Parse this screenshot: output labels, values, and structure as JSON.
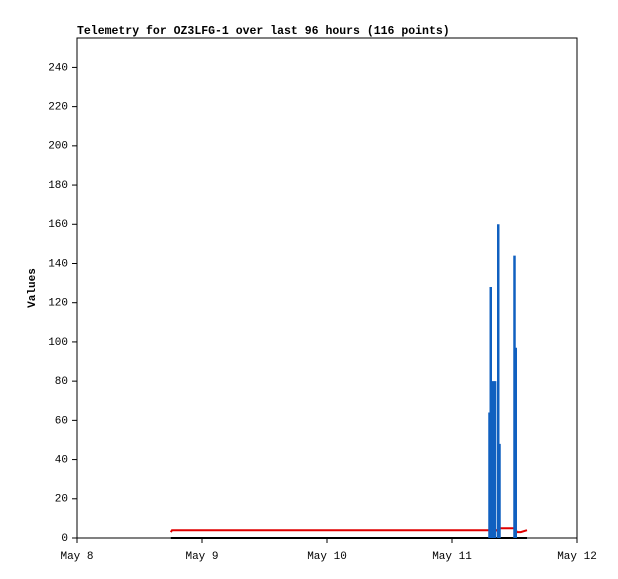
{
  "chart_data": {
    "type": "line",
    "title": "Telemetry for OZ3LFG-1 over last 96 hours (116 points)",
    "y_label": "Values",
    "xlim": [
      0,
      4
    ],
    "xticks": [
      {
        "value": 0,
        "label": "May 8"
      },
      {
        "value": 1,
        "label": "May 9"
      },
      {
        "value": 2,
        "label": "May 10"
      },
      {
        "value": 3,
        "label": "May 11"
      },
      {
        "value": 4,
        "label": "May 12"
      }
    ],
    "ylim": [
      0,
      255
    ],
    "yticks": [
      0,
      20,
      40,
      60,
      80,
      100,
      120,
      140,
      160,
      180,
      200,
      220,
      240
    ],
    "series": [
      {
        "color": "#000000",
        "style": "line",
        "x": [
          0.75,
          3.6
        ],
        "values": [
          0,
          0
        ]
      },
      {
        "color": "#e00000",
        "style": "line",
        "x": [
          0.75,
          0.76,
          3.3,
          3.33,
          3.36,
          3.38,
          3.5,
          3.52,
          3.55,
          3.6
        ],
        "values": [
          3,
          4,
          4,
          3,
          4,
          5,
          5,
          3,
          3,
          4
        ]
      },
      {
        "color": "#1060c0",
        "style": "stem",
        "x": [
          3.3,
          3.31,
          3.33,
          3.345,
          3.37,
          3.38,
          3.5,
          3.51
        ],
        "values": [
          64,
          128,
          80,
          80,
          160,
          48,
          144,
          97
        ]
      }
    ]
  }
}
